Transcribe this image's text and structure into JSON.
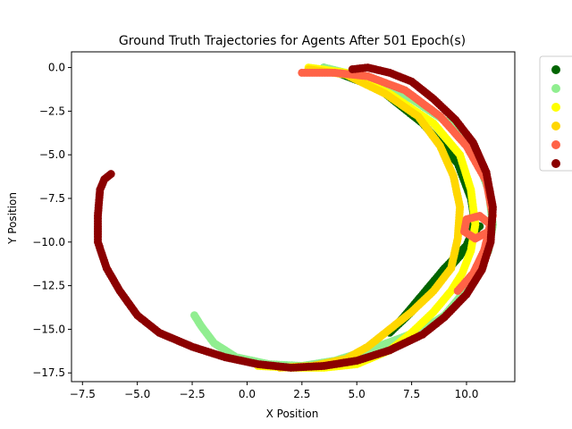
{
  "chart_data": {
    "type": "scatter",
    "title": "Ground Truth Trajectories for Agents After 501 Epoch(s)",
    "xlabel": "X Position",
    "ylabel": "Y Position",
    "xlim": [
      -8.0,
      12.2
    ],
    "ylim": [
      -18.0,
      0.9
    ],
    "xticks": [
      -7.5,
      -5.0,
      -2.5,
      0.0,
      2.5,
      5.0,
      7.5,
      10.0
    ],
    "xtick_labels": [
      "−7.5",
      "−5.0",
      "−2.5",
      "0.0",
      "2.5",
      "5.0",
      "7.5",
      "10.0"
    ],
    "yticks": [
      0.0,
      -2.5,
      -5.0,
      -7.5,
      -10.0,
      -12.5,
      -15.0,
      -17.5
    ],
    "ytick_labels": [
      "0.0",
      "−2.5",
      "−5.0",
      "−7.5",
      "−10.0",
      "−12.5",
      "−15.0",
      "−17.5"
    ],
    "grid": false,
    "legend": {
      "placement": "outside-top-right",
      "entries": [
        "",
        "",
        "",
        "",
        "",
        ""
      ]
    },
    "series": [
      {
        "color": "#006400",
        "points": [
          [
            3.5,
            0.0
          ],
          [
            6.0,
            -1.2
          ],
          [
            8.0,
            -3.2
          ],
          [
            9.6,
            -5.5
          ],
          [
            10.2,
            -7.5
          ],
          [
            10.4,
            -9.0
          ],
          [
            10.0,
            -10.2
          ],
          [
            9.0,
            -11.5
          ],
          [
            8.0,
            -13.0
          ],
          [
            7.2,
            -14.2
          ],
          [
            6.5,
            -15.2
          ],
          [
            7.5,
            -14.0
          ],
          [
            8.5,
            -12.5
          ],
          [
            9.7,
            -10.8
          ],
          [
            10.5,
            -9.2
          ],
          [
            10.0,
            -8.9
          ],
          [
            10.6,
            -9.1
          ],
          [
            10.1,
            -9.3
          ]
        ]
      },
      {
        "color": "#90EE90",
        "points": [
          [
            3.5,
            0.0
          ],
          [
            5.5,
            -0.6
          ],
          [
            7.5,
            -1.8
          ],
          [
            9.2,
            -3.2
          ],
          [
            10.4,
            -5.0
          ],
          [
            11.0,
            -7.0
          ],
          [
            11.2,
            -9.0
          ],
          [
            11.0,
            -10.5
          ],
          [
            10.5,
            -11.8
          ],
          [
            9.8,
            -13.0
          ],
          [
            9.0,
            -14.2
          ],
          [
            8.0,
            -15.0
          ],
          [
            7.0,
            -15.5
          ],
          [
            5.5,
            -16.2
          ],
          [
            4.0,
            -16.8
          ],
          [
            2.5,
            -17.1
          ],
          [
            1.0,
            -17.0
          ],
          [
            -0.5,
            -16.6
          ],
          [
            -1.5,
            -15.8
          ],
          [
            -2.1,
            -14.8
          ],
          [
            -2.4,
            -14.2
          ]
        ]
      },
      {
        "color": "#FFFF00",
        "points": [
          [
            2.8,
            0.0
          ],
          [
            4.5,
            -0.3
          ],
          [
            6.5,
            -1.5
          ],
          [
            8.5,
            -3.2
          ],
          [
            9.7,
            -5.0
          ],
          [
            10.2,
            -7.0
          ],
          [
            10.4,
            -9.0
          ],
          [
            10.2,
            -10.5
          ],
          [
            9.8,
            -11.8
          ],
          [
            9.3,
            -12.8
          ],
          [
            8.5,
            -14.0
          ],
          [
            7.5,
            -15.2
          ],
          [
            6.5,
            -16.2
          ],
          [
            5.0,
            -17.0
          ],
          [
            3.5,
            -17.2
          ],
          [
            2.0,
            -17.2
          ],
          [
            0.5,
            -17.1
          ]
        ]
      },
      {
        "color": "#FFD700",
        "points": [
          [
            2.8,
            -0.1
          ],
          [
            4.5,
            -0.4
          ],
          [
            6.3,
            -1.5
          ],
          [
            7.8,
            -2.8
          ],
          [
            8.8,
            -4.5
          ],
          [
            9.4,
            -6.2
          ],
          [
            9.7,
            -8.0
          ],
          [
            9.6,
            -9.8
          ],
          [
            9.3,
            -11.5
          ],
          [
            8.5,
            -12.8
          ],
          [
            7.5,
            -14.0
          ],
          [
            6.5,
            -15.0
          ],
          [
            5.5,
            -16.0
          ],
          [
            4.5,
            -16.7
          ],
          [
            3.0,
            -17.1
          ],
          [
            1.5,
            -17.2
          ]
        ]
      },
      {
        "color": "#FF6347",
        "points": [
          [
            2.5,
            -0.3
          ],
          [
            4.0,
            -0.3
          ],
          [
            5.5,
            -0.5
          ],
          [
            7.2,
            -1.3
          ],
          [
            8.8,
            -2.8
          ],
          [
            10.0,
            -4.5
          ],
          [
            10.9,
            -6.5
          ],
          [
            11.2,
            -8.5
          ],
          [
            11.0,
            -9.4
          ],
          [
            10.4,
            -9.8
          ],
          [
            9.9,
            -9.4
          ],
          [
            10.0,
            -8.7
          ],
          [
            10.6,
            -8.5
          ],
          [
            11.1,
            -9.0
          ],
          [
            10.8,
            -10.5
          ],
          [
            10.3,
            -11.8
          ],
          [
            9.6,
            -12.8
          ]
        ]
      },
      {
        "color": "#8B0000",
        "points": [
          [
            4.8,
            -0.1
          ],
          [
            5.5,
            0.0
          ],
          [
            6.5,
            -0.3
          ],
          [
            7.5,
            -0.8
          ],
          [
            8.5,
            -1.8
          ],
          [
            9.5,
            -3.0
          ],
          [
            10.3,
            -4.3
          ],
          [
            10.9,
            -6.0
          ],
          [
            11.2,
            -8.0
          ],
          [
            11.1,
            -10.0
          ],
          [
            10.7,
            -11.6
          ],
          [
            10.0,
            -13.0
          ],
          [
            9.0,
            -14.3
          ],
          [
            8.0,
            -15.3
          ],
          [
            6.5,
            -16.2
          ],
          [
            5.0,
            -16.8
          ],
          [
            3.5,
            -17.1
          ],
          [
            2.0,
            -17.2
          ],
          [
            0.5,
            -17.0
          ],
          [
            -1.0,
            -16.6
          ],
          [
            -2.5,
            -16.0
          ],
          [
            -4.0,
            -15.2
          ],
          [
            -5.0,
            -14.2
          ],
          [
            -5.8,
            -12.8
          ],
          [
            -6.4,
            -11.5
          ],
          [
            -6.8,
            -10.0
          ],
          [
            -6.8,
            -8.5
          ],
          [
            -6.7,
            -7.0
          ],
          [
            -6.5,
            -6.4
          ],
          [
            -6.2,
            -6.1
          ]
        ]
      }
    ]
  }
}
